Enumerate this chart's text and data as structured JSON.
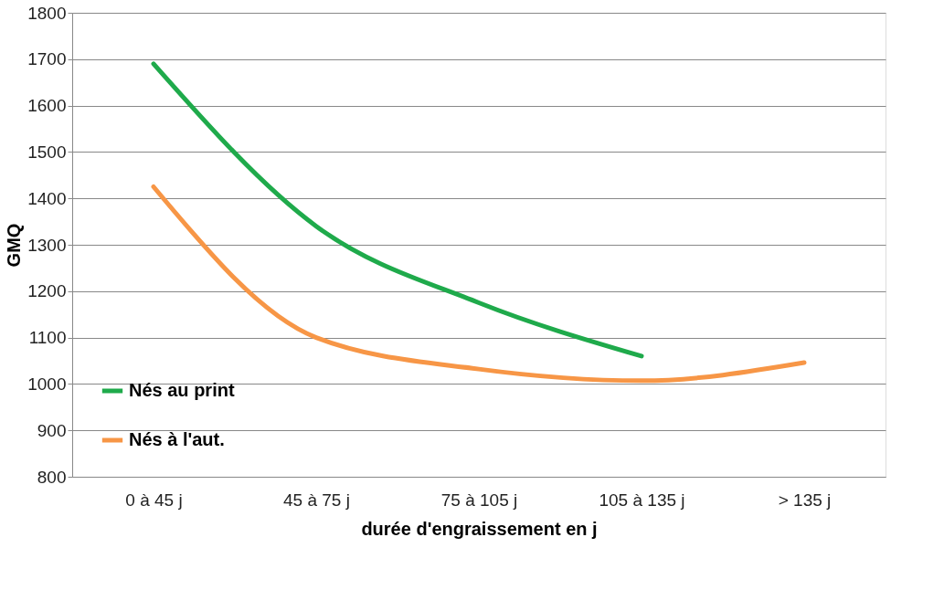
{
  "chart_data": {
    "type": "line",
    "xlabel": "durée d'engraissement en j",
    "ylabel": "GMQ",
    "categories": [
      "0 à 45 j",
      "45 à 75 j",
      "75 à 105 j",
      "105 à 135 j",
      "> 135 j"
    ],
    "series": [
      {
        "name": "Nés au print",
        "color": "#1faa4b",
        "values": [
          1690,
          1340,
          1175,
          1060,
          null
        ]
      },
      {
        "name": "Nés à l'aut.",
        "color": "#f79646",
        "values": [
          1425,
          1100,
          1032,
          1007,
          1046
        ]
      }
    ],
    "ylim": [
      800,
      1800
    ],
    "yticks": [
      800,
      900,
      1000,
      1100,
      1200,
      1300,
      1400,
      1500,
      1600,
      1700,
      1800
    ],
    "grid": "y",
    "legend": "bottom left",
    "marker": "none",
    "line_style": "solid"
  }
}
